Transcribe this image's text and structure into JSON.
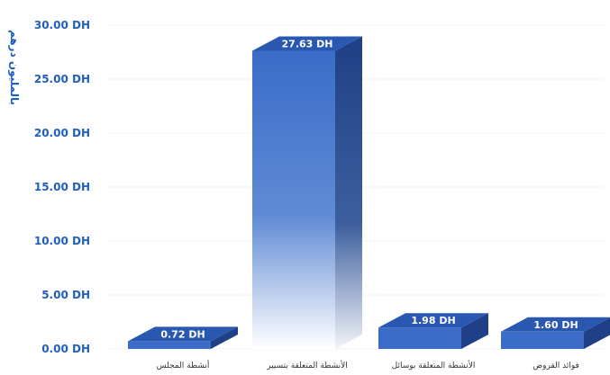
{
  "chart_data": {
    "type": "bar",
    "ylabel": "بالمليون درهم",
    "ylim": [
      0,
      30
    ],
    "y_ticks": [
      "0.00 DH",
      "5.00 DH",
      "10.00 DH",
      "15.00 DH",
      "20.00 DH",
      "25.00 DH",
      "30.00 DH"
    ],
    "categories": [
      "أنشطة المجلس",
      "الأنشطة المتعلقة بتسيير",
      "الأنشطة المتعلقة بوسائل",
      "فوائد القروض"
    ],
    "values": [
      0.72,
      27.63,
      1.98,
      1.6
    ],
    "data_labels": [
      "0.72 DH",
      "27.63 DH",
      "1.98 DH",
      "1.60 DH"
    ],
    "grid": true,
    "style": "3d-bar",
    "colors": {
      "bar_front": "#3a6cc8",
      "bar_top": "#2a58b0",
      "bar_side": "#1f3f86",
      "axis_text": "#1f5fbf"
    }
  }
}
